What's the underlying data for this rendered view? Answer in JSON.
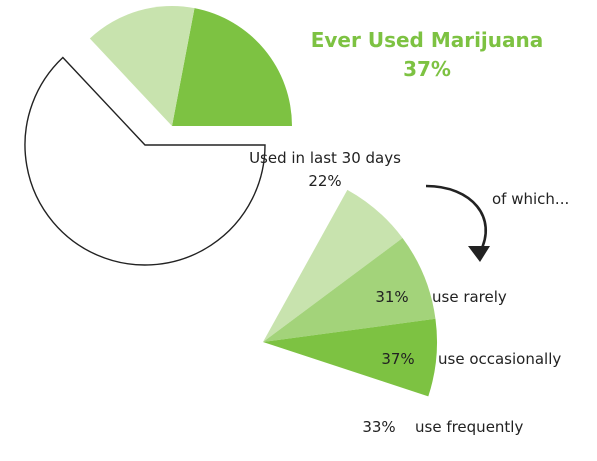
{
  "chart_data": [
    {
      "type": "pie",
      "title": "Ever Used Marijuana",
      "title_value": "37%",
      "slices": [
        {
          "label": "Used in last 30 days",
          "value_label": "22%",
          "value": 22,
          "color": "#7dc242"
        },
        {
          "label": "",
          "value": 15,
          "color": "#c8e3ae"
        },
        {
          "label": "",
          "value": 63,
          "color": "#ffffff"
        }
      ],
      "note": "of which...",
      "colors": {
        "title": "#7dc242",
        "outline": "#222222"
      }
    },
    {
      "type": "pie",
      "slices": [
        {
          "value": 31,
          "value_label": "31%",
          "label": "use rarely",
          "color": "#c8e3ae"
        },
        {
          "value": 37,
          "value_label": "37%",
          "label": "use occasionally",
          "color": "#a3d37a"
        },
        {
          "value": 33,
          "value_label": "33%",
          "label": "use frequently",
          "color": "#7dc242"
        }
      ]
    }
  ]
}
